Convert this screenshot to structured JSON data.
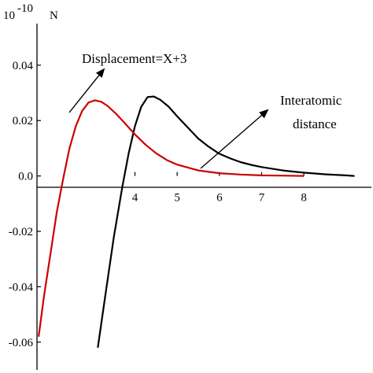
{
  "chart_data": {
    "type": "line",
    "y_exponent_label": "10",
    "y_exponent_power": "-10",
    "y_unit": "N",
    "xlim": [
      1.68,
      9.6
    ],
    "ylim": [
      -0.07,
      0.055
    ],
    "x_ticks": [
      {
        "value": 4,
        "label": "4"
      },
      {
        "value": 5,
        "label": "5"
      },
      {
        "value": 6,
        "label": "6"
      },
      {
        "value": 7,
        "label": "7"
      },
      {
        "value": 8,
        "label": "8"
      }
    ],
    "y_ticks": [
      {
        "value": 0.04,
        "label": "0.04"
      },
      {
        "value": 0.02,
        "label": "0.02"
      },
      {
        "value": 0.0,
        "label": "0.0"
      },
      {
        "value": -0.02,
        "label": "-0.02"
      },
      {
        "value": -0.04,
        "label": "-0.04"
      },
      {
        "value": -0.06,
        "label": "-0.06"
      }
    ],
    "series": [
      {
        "color": "#000000",
        "points": [
          [
            3.12,
            -0.062
          ],
          [
            3.3,
            -0.043
          ],
          [
            3.5,
            -0.022
          ],
          [
            3.7,
            -0.004
          ],
          [
            3.85,
            0.008
          ],
          [
            4.0,
            0.018
          ],
          [
            4.15,
            0.025
          ],
          [
            4.3,
            0.0285
          ],
          [
            4.45,
            0.0287
          ],
          [
            4.6,
            0.0275
          ],
          [
            4.8,
            0.025
          ],
          [
            5.0,
            0.0215
          ],
          [
            5.25,
            0.0175
          ],
          [
            5.5,
            0.0135
          ],
          [
            5.75,
            0.0105
          ],
          [
            6.0,
            0.008
          ],
          [
            6.25,
            0.0064
          ],
          [
            6.5,
            0.005
          ],
          [
            6.75,
            0.004
          ],
          [
            7.0,
            0.0032
          ],
          [
            7.5,
            0.002
          ],
          [
            8.0,
            0.0012
          ],
          [
            8.5,
            0.0006
          ],
          [
            9.0,
            0.0002
          ],
          [
            9.2,
            0.0
          ]
        ]
      },
      {
        "color": "#cc0000",
        "points": [
          [
            1.72,
            -0.058
          ],
          [
            1.85,
            -0.043
          ],
          [
            2.0,
            -0.028
          ],
          [
            2.15,
            -0.013
          ],
          [
            2.3,
            -0.001
          ],
          [
            2.45,
            0.01
          ],
          [
            2.6,
            0.018
          ],
          [
            2.75,
            0.0235
          ],
          [
            2.9,
            0.0265
          ],
          [
            3.05,
            0.0273
          ],
          [
            3.2,
            0.0268
          ],
          [
            3.35,
            0.0253
          ],
          [
            3.55,
            0.0225
          ],
          [
            3.75,
            0.0192
          ],
          [
            4.0,
            0.015
          ],
          [
            4.25,
            0.0113
          ],
          [
            4.5,
            0.0082
          ],
          [
            4.75,
            0.0058
          ],
          [
            5.0,
            0.0041
          ],
          [
            5.5,
            0.002
          ],
          [
            6.0,
            0.001
          ],
          [
            6.5,
            0.0005
          ],
          [
            7.0,
            0.0002
          ],
          [
            7.5,
            0.0001
          ],
          [
            8.0,
            0.0
          ]
        ]
      }
    ],
    "annotations": [
      {
        "text_lines": [
          "Displacement=X+3"
        ]
      },
      {
        "text_lines": [
          "Interatomic",
          "distance"
        ]
      }
    ]
  }
}
